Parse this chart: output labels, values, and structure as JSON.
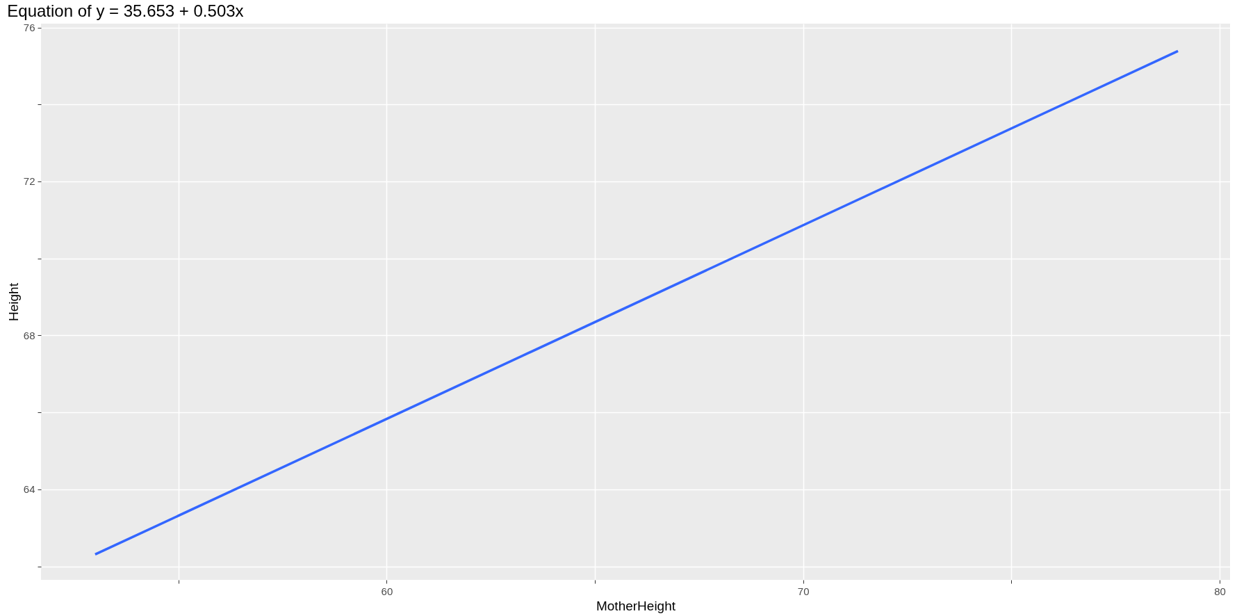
{
  "chart_data": {
    "type": "line",
    "title": "Equation of y = 35.653 + 0.503x",
    "xlabel": "MotherHeight",
    "ylabel": "Height",
    "series": [
      {
        "color": "#3366ff",
        "x": [
          53,
          79
        ],
        "values": [
          62.31,
          75.39
        ]
      }
    ],
    "xlim": [
      51.7,
      80.25
    ],
    "ylim": [
      61.65,
      76.1
    ],
    "xticks": [
      {
        "value": 55,
        "label": null
      },
      60,
      {
        "value": 65,
        "label": null
      },
      70,
      {
        "value": 75,
        "label": null
      },
      80
    ],
    "yticks": [
      {
        "value": 62,
        "label": null
      },
      64,
      {
        "value": 66,
        "label": null
      },
      68,
      {
        "value": 70,
        "label": null
      },
      72,
      {
        "value": 74,
        "label": null
      },
      76
    ],
    "grid": true
  }
}
